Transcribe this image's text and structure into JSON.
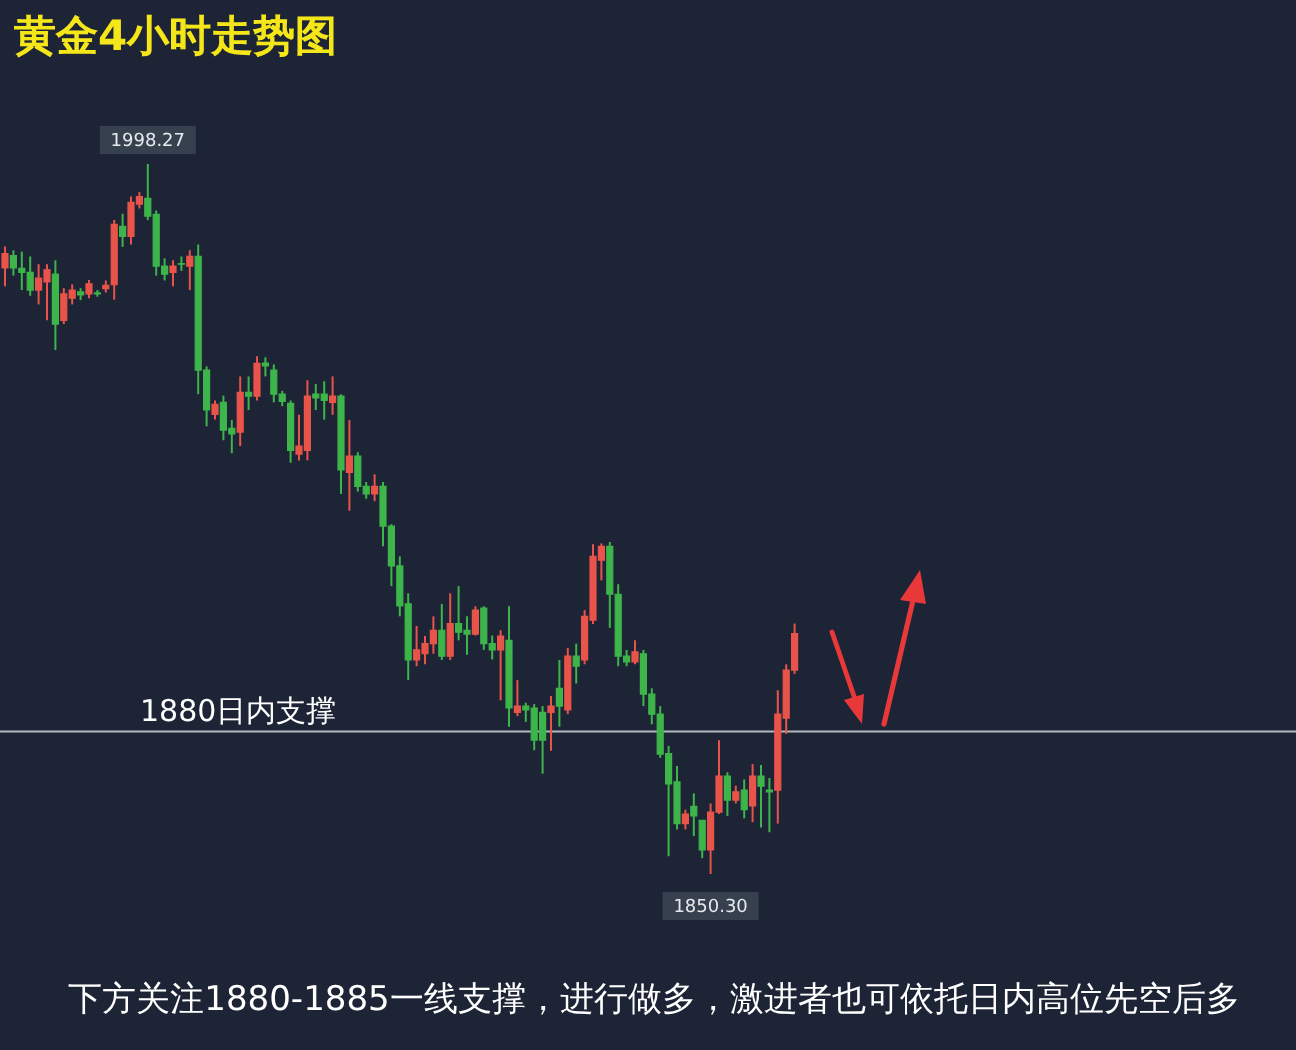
{
  "chart_data": {
    "type": "candlestick",
    "title": "黄金4小时走势图",
    "categories": [
      null,
      null,
      null,
      null,
      null,
      null,
      null,
      null,
      null,
      null,
      null,
      null,
      null,
      null,
      null,
      null,
      null,
      null,
      null,
      null,
      null,
      null,
      null,
      null,
      null,
      null,
      null,
      null,
      null,
      null,
      null,
      null,
      null,
      null,
      null,
      null,
      null,
      null,
      null,
      null,
      null,
      null,
      null,
      null,
      null,
      null,
      null,
      null,
      null,
      null,
      null,
      null,
      null,
      null,
      null,
      null,
      null,
      null,
      null,
      null,
      null,
      null,
      null,
      null,
      null,
      null,
      null,
      null,
      null,
      null,
      null,
      null,
      null,
      null,
      null,
      null,
      null,
      null,
      null,
      null,
      null,
      null,
      null,
      null,
      null,
      null,
      null,
      null,
      null,
      null,
      null,
      null,
      null,
      null,
      null
    ],
    "ohlc": [
      [
        1976.6,
        1981.1,
        1972.8,
        1979.6
      ],
      [
        1979.2,
        1980.3,
        1975.0,
        1976.6
      ],
      [
        1976.5,
        1980.0,
        1972.0,
        1975.7
      ],
      [
        1975.7,
        1979.0,
        1970.8,
        1972.0
      ],
      [
        1972.0,
        1977.4,
        1969.0,
        1974.5
      ],
      [
        1973.7,
        1977.4,
        1965.7,
        1976.2
      ],
      [
        1975.3,
        1978.2,
        1959.5,
        1964.9
      ],
      [
        1965.7,
        1972.4,
        1964.9,
        1971.2
      ],
      [
        1970.3,
        1973.2,
        1969.0,
        1972.0
      ],
      [
        1971.6,
        1972.4,
        1969.9,
        1971.0
      ],
      [
        1971.2,
        1974.1,
        1970.3,
        1973.3
      ],
      [
        1971.4,
        1972.0,
        1970.6,
        1971.2
      ],
      [
        1972.3,
        1974.0,
        1971.5,
        1973.0
      ],
      [
        1973.1,
        1986.6,
        1970.0,
        1985.7
      ],
      [
        1985.3,
        1987.9,
        1981.0,
        1983.2
      ],
      [
        1983.2,
        1991.5,
        1981.5,
        1990.3
      ],
      [
        1989.9,
        1992.4,
        1989.0,
        1991.5
      ],
      [
        1991.1,
        1998.27,
        1986.6,
        1987.4
      ],
      [
        1987.8,
        1988.6,
        1975.0,
        1977.0
      ],
      [
        1977.0,
        1978.6,
        1974.0,
        1975.3
      ],
      [
        1975.7,
        1978.2,
        1972.8,
        1977.0
      ],
      [
        1977.5,
        1979.0,
        1976.0,
        1977.4
      ],
      [
        1977.0,
        1980.3,
        1972.0,
        1979.0
      ],
      [
        1979.0,
        1981.5,
        1950.3,
        1955.3
      ],
      [
        1955.3,
        1956.1,
        1943.6,
        1947.0
      ],
      [
        1946.1,
        1949.0,
        1945.0,
        1948.2
      ],
      [
        1948.6,
        1950.0,
        1940.7,
        1942.8
      ],
      [
        1943.2,
        1944.9,
        1938.0,
        1942.0
      ],
      [
        1942.4,
        1954.0,
        1939.5,
        1950.7
      ],
      [
        1950.7,
        1954.0,
        1947.0,
        1949.9
      ],
      [
        1949.9,
        1958.2,
        1949.0,
        1956.7
      ],
      [
        1956.8,
        1958.0,
        1954.0,
        1956.2
      ],
      [
        1955.3,
        1956.5,
        1948.6,
        1950.3
      ],
      [
        1950.3,
        1951.0,
        1947.8,
        1948.8
      ],
      [
        1948.4,
        1949.0,
        1936.0,
        1938.6
      ],
      [
        1937.8,
        1946.0,
        1936.5,
        1939.5
      ],
      [
        1938.6,
        1953.2,
        1936.5,
        1949.9
      ],
      [
        1950.3,
        1952.4,
        1947.0,
        1949.5
      ],
      [
        1950.3,
        1953.0,
        1945.0,
        1949.0
      ],
      [
        1948.6,
        1954.0,
        1946.0,
        1949.9
      ],
      [
        1949.9,
        1950.3,
        1929.5,
        1934.5
      ],
      [
        1934.0,
        1944.9,
        1926.0,
        1937.4
      ],
      [
        1937.4,
        1938.2,
        1930.0,
        1931.1
      ],
      [
        1931.1,
        1932.0,
        1928.5,
        1929.5
      ],
      [
        1929.5,
        1933.6,
        1928.0,
        1931.1
      ],
      [
        1931.1,
        1932.0,
        1918.6,
        1922.8
      ],
      [
        1922.8,
        1923.2,
        1910.3,
        1914.5
      ],
      [
        1914.5,
        1916.5,
        1904.0,
        1906.2
      ],
      [
        1906.6,
        1908.8,
        1890.7,
        1894.9
      ],
      [
        1894.9,
        1902.0,
        1893.6,
        1897.0
      ],
      [
        1896.2,
        1899.9,
        1894.0,
        1898.3
      ],
      [
        1898.3,
        1904.0,
        1896.2,
        1901.1
      ],
      [
        1901.1,
        1906.6,
        1894.9,
        1895.7
      ],
      [
        1895.7,
        1908.8,
        1894.9,
        1902.5
      ],
      [
        1902.5,
        1910.3,
        1899.0,
        1900.7
      ],
      [
        1901.1,
        1904.0,
        1896.0,
        1900.3
      ],
      [
        1900.3,
        1906.1,
        1900.0,
        1905.3
      ],
      [
        1905.7,
        1906.1,
        1897.0,
        1898.3
      ],
      [
        1898.3,
        1900.0,
        1895.0,
        1897.0
      ],
      [
        1897.0,
        1901.1,
        1886.5,
        1899.9
      ],
      [
        1899.0,
        1906.1,
        1881.0,
        1884.9
      ],
      [
        1884.0,
        1890.7,
        1883.2,
        1885.3
      ],
      [
        1885.3,
        1886.0,
        1882.0,
        1884.5
      ],
      [
        1884.9,
        1885.7,
        1876.1,
        1878.2
      ],
      [
        1884.0,
        1885.3,
        1871.2,
        1878.2
      ],
      [
        1884.0,
        1887.4,
        1876.0,
        1885.3
      ],
      [
        1889.0,
        1894.9,
        1881.0,
        1885.3
      ],
      [
        1884.5,
        1897.4,
        1883.6,
        1895.7
      ],
      [
        1895.7,
        1898.3,
        1890.0,
        1893.6
      ],
      [
        1894.9,
        1905.3,
        1894.0,
        1904.0
      ],
      [
        1903.2,
        1919.0,
        1902.4,
        1916.5
      ],
      [
        1915.7,
        1919.2,
        1911.5,
        1918.6
      ],
      [
        1918.6,
        1919.5,
        1901.6,
        1908.6
      ],
      [
        1908.6,
        1910.7,
        1893.6,
        1895.7
      ],
      [
        1895.7,
        1897.0,
        1893.6,
        1894.5
      ],
      [
        1894.5,
        1899.0,
        1894.0,
        1896.6
      ],
      [
        1896.2,
        1897.0,
        1885.3,
        1887.8
      ],
      [
        1887.8,
        1889.0,
        1881.5,
        1883.6
      ],
      [
        1883.6,
        1885.3,
        1874.5,
        1875.3
      ],
      [
        1875.4,
        1877.0,
        1854.0,
        1869.1
      ],
      [
        1869.5,
        1872.8,
        1859.6,
        1860.8
      ],
      [
        1860.8,
        1863.7,
        1859.6,
        1862.8
      ],
      [
        1864.4,
        1867.1,
        1858.2,
        1862.4
      ],
      [
        1861.5,
        1861.5,
        1853.6,
        1855.3
      ],
      [
        1855.3,
        1865.0,
        1850.3,
        1863.2
      ],
      [
        1863.2,
        1878.2,
        1862.8,
        1870.7
      ],
      [
        1870.7,
        1871.5,
        1862.4,
        1865.7
      ],
      [
        1865.7,
        1868.7,
        1865.0,
        1867.4
      ],
      [
        1867.8,
        1870.0,
        1861.9,
        1863.7
      ],
      [
        1864.5,
        1873.2,
        1861.1,
        1870.7
      ],
      [
        1870.7,
        1873.0,
        1860.0,
        1868.6
      ],
      [
        1867.8,
        1870.3,
        1859.0,
        1867.4
      ],
      [
        1867.8,
        1888.6,
        1860.8,
        1883.6
      ],
      [
        1882.8,
        1894.0,
        1879.5,
        1892.8
      ],
      [
        1892.8,
        1902.5,
        1892.0,
        1900.4
      ]
    ],
    "colors": [
      "#e9544a",
      "#3db54a",
      "#3db54a",
      "#3db54a",
      "#e9544a",
      "#e9544a",
      "#3db54a",
      "#e9544a",
      "#e9544a",
      "#3db54a",
      "#e9544a",
      "#3db54a",
      "#e9544a",
      "#e9544a",
      "#3db54a",
      "#e9544a",
      "#e9544a",
      "#3db54a",
      "#3db54a",
      "#3db54a",
      "#e9544a",
      "#3db54a",
      "#e9544a",
      "#3db54a",
      "#3db54a",
      "#e9544a",
      "#3db54a",
      "#3db54a",
      "#e9544a",
      "#3db54a",
      "#e9544a",
      "#3db54a",
      "#3db54a",
      "#3db54a",
      "#3db54a",
      "#e9544a",
      "#e9544a",
      "#3db54a",
      "#3db54a",
      "#e9544a",
      "#3db54a",
      "#e9544a",
      "#3db54a",
      "#3db54a",
      "#e9544a",
      "#3db54a",
      "#3db54a",
      "#3db54a",
      "#3db54a",
      "#e9544a",
      "#e9544a",
      "#e9544a",
      "#3db54a",
      "#e9544a",
      "#3db54a",
      "#3db54a",
      "#e9544a",
      "#3db54a",
      "#3db54a",
      "#e9544a",
      "#3db54a",
      "#e9544a",
      "#3db54a",
      "#3db54a",
      "#3db54a",
      "#e9544a",
      "#3db54a",
      "#e9544a",
      "#3db54a",
      "#e9544a",
      "#e9544a",
      "#e9544a",
      "#3db54a",
      "#3db54a",
      "#3db54a",
      "#e9544a",
      "#3db54a",
      "#3db54a",
      "#3db54a",
      "#3db54a",
      "#3db54a",
      "#e9544a",
      "#3db54a",
      "#3db54a",
      "#e9544a",
      "#e9544a",
      "#3db54a",
      "#e9544a",
      "#3db54a",
      "#e9544a",
      "#3db54a",
      "#3db54a",
      "#e9544a",
      "#e9544a",
      "#e9544a"
    ],
    "ref_lines": [
      {
        "axis": "y",
        "value": 1880,
        "label": "1880日内支撑",
        "color": "#b4b8c0"
      }
    ],
    "annotations": [
      {
        "text": "1998.27",
        "y": 1998.27
      },
      {
        "text": "1850.30",
        "y": 1850.3
      },
      "下方关注1880-1885一线支撑，进行做多，激进者也可依托日内高位先空后多"
    ]
  }
}
